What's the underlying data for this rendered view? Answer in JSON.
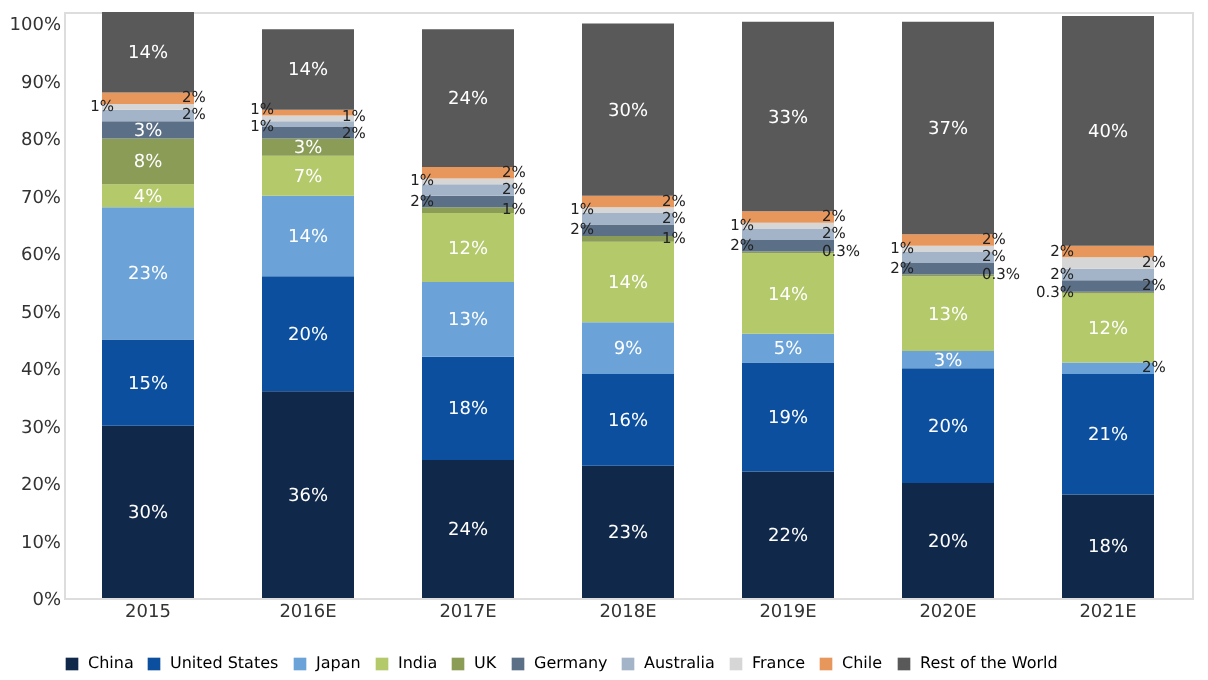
{
  "chart_data": {
    "type": "bar",
    "stacked": true,
    "categories": [
      "2015",
      "2016E",
      "2017E",
      "2018E",
      "2019E",
      "2020E",
      "2021E"
    ],
    "ylim": [
      0,
      102
    ],
    "yticks": [
      {
        "value": 0,
        "label": "0%"
      },
      {
        "value": 10,
        "label": "10%"
      },
      {
        "value": 20,
        "label": "20%"
      },
      {
        "value": 30,
        "label": "30%"
      },
      {
        "value": 40,
        "label": "40%"
      },
      {
        "value": 50,
        "label": "50%"
      },
      {
        "value": 60,
        "label": "60%"
      },
      {
        "value": 70,
        "label": "70%"
      },
      {
        "value": 80,
        "label": "80%"
      },
      {
        "value": 90,
        "label": "90%"
      },
      {
        "value": 100,
        "label": "100%"
      }
    ],
    "grid": false,
    "legend": "bottom",
    "series": [
      {
        "name": "China",
        "color": "#10284a",
        "values": [
          30,
          36,
          24,
          23,
          22,
          20,
          18
        ],
        "value_labels": [
          "30%",
          "36%",
          "24%",
          "23%",
          "22%",
          "20%",
          "18%"
        ]
      },
      {
        "name": "United States",
        "color": "#0b4f9e",
        "values": [
          15,
          20,
          18,
          16,
          19,
          20,
          21
        ],
        "value_labels": [
          "15%",
          "20%",
          "18%",
          "16%",
          "19%",
          "20%",
          "21%"
        ]
      },
      {
        "name": "Japan",
        "color": "#6ba3d8",
        "values": [
          23,
          14,
          13,
          9,
          5,
          3,
          2
        ],
        "value_labels": [
          "23%",
          "14%",
          "13%",
          "9%",
          "5%",
          "3%",
          "2%"
        ]
      },
      {
        "name": "India",
        "color": "#b3c96a",
        "values": [
          4,
          7,
          12,
          14,
          14,
          13,
          12
        ],
        "value_labels": [
          "4%",
          "7%",
          "12%",
          "14%",
          "14%",
          "13%",
          "12%"
        ]
      },
      {
        "name": "UK",
        "color": "#8a9c56",
        "values": [
          8,
          3,
          1,
          1,
          0.3,
          0.3,
          0.3
        ],
        "value_labels": [
          "8%",
          "3%",
          "1%",
          "1%",
          "0.3%",
          "0.3%",
          "0.3%"
        ]
      },
      {
        "name": "Germany",
        "color": "#5b6f86",
        "values": [
          3,
          2,
          2,
          2,
          2,
          2,
          2
        ],
        "value_labels": [
          "3%",
          "2%",
          "2%",
          "2%",
          "2%",
          "2%",
          "2%"
        ]
      },
      {
        "name": "Australia",
        "color": "#a3b4c8",
        "values": [
          2,
          1,
          2,
          2,
          2,
          2,
          2
        ],
        "value_labels": [
          "2%",
          "1%",
          "2%",
          "2%",
          "2%",
          "2%",
          "2%"
        ]
      },
      {
        "name": "France",
        "color": "#d6d6d6",
        "values": [
          1,
          1,
          1,
          1,
          1,
          1,
          2
        ],
        "value_labels": [
          "1%",
          "1%",
          "1%",
          "1%",
          "1%",
          "1%",
          "2%"
        ]
      },
      {
        "name": "Chile",
        "color": "#e8975c",
        "values": [
          2,
          1,
          2,
          2,
          2,
          2,
          2
        ],
        "value_labels": [
          "2%",
          "1%",
          "2%",
          "2%",
          "2%",
          "2%",
          "2%"
        ]
      },
      {
        "name": "Rest of the World",
        "color": "#595959",
        "values": [
          14,
          14,
          24,
          30,
          33,
          37,
          40
        ],
        "value_labels": [
          "14%",
          "14%",
          "24%",
          "30%",
          "33%",
          "37%",
          "40%"
        ]
      }
    ]
  }
}
